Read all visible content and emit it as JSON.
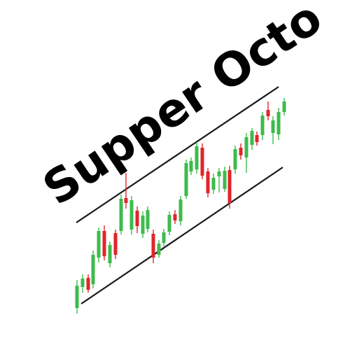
{
  "logo": {
    "title": "Supper Octo",
    "colors": {
      "bullish": "#3dbb4c",
      "bearish": "#e0262b",
      "line": "#1a1a1a",
      "text": "#000000",
      "background": "#ffffff"
    }
  }
}
